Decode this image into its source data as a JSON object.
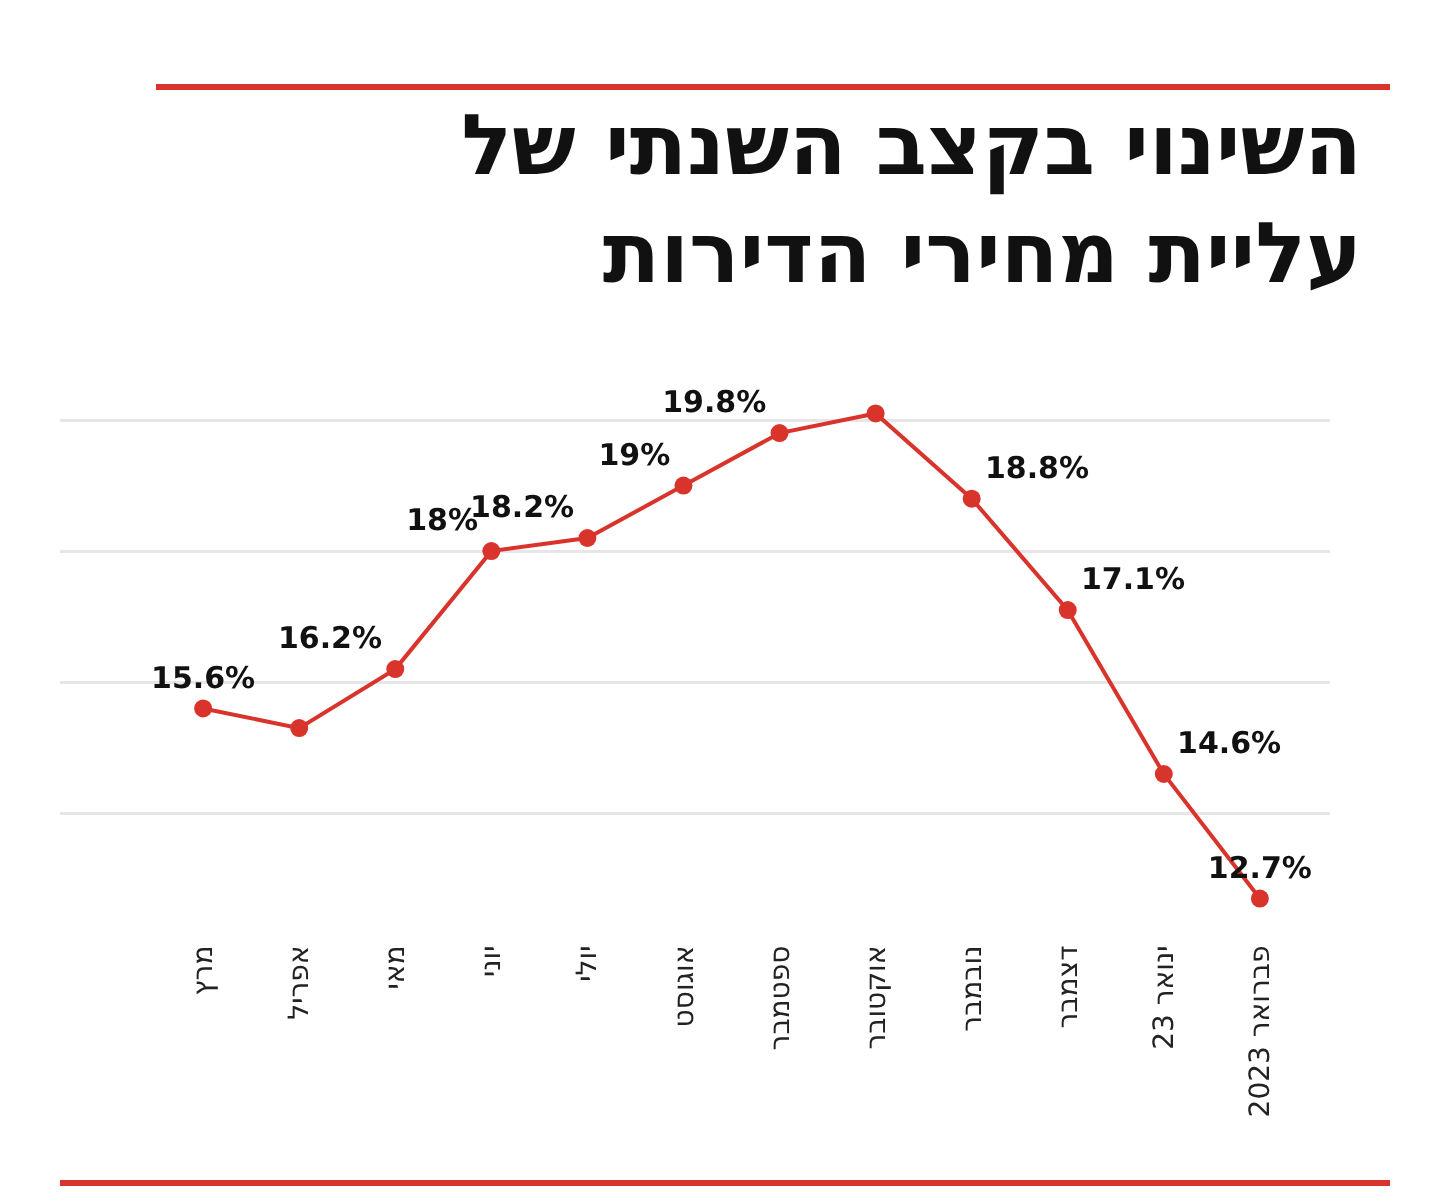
{
  "chart_data": {
    "type": "line",
    "title": "השינוי בקצב השנתי של עליית מחירי הדירות",
    "categories": [
      "מרץ",
      "אפריל",
      "מאי",
      "יוני",
      "יולי",
      "אוגוסט",
      "ספטמבר",
      "אוקטובר",
      "נובמבר",
      "דצמבר",
      "ינואר 23",
      "פברואר 2023"
    ],
    "series": [
      {
        "color": "#d9342b",
        "values": [
          15.6,
          15.3,
          16.2,
          18,
          18.2,
          19,
          19.8,
          20.1,
          18.8,
          17.1,
          14.6,
          12.7
        ],
        "value_labels": [
          "15.6%",
          null,
          "16.2%",
          "18%",
          "18.2%",
          "19%",
          "19.8%",
          null,
          "18.8%",
          "17.1%",
          "14.6%",
          "12.7%"
        ]
      }
    ],
    "grid": "y",
    "marker": "circle",
    "line_style": "solid",
    "tick_labels": "x",
    "legend": false
  }
}
